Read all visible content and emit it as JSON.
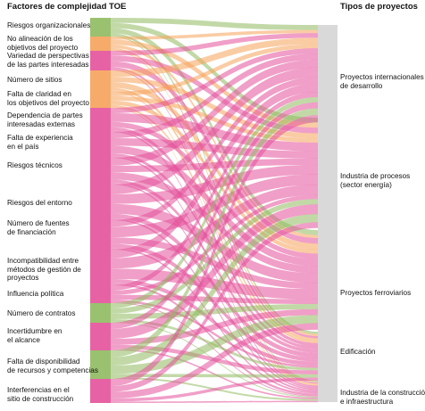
{
  "header_left": "Factores de complejidad TOE",
  "header_right": "Tipos de proyectos",
  "colors": {
    "green": "#8fba5f",
    "orange": "#f5a25a",
    "pink": "#e4509b",
    "target": "#b9b9b9"
  },
  "factors": [
    {
      "lines": [
        "Riesgos organizacionales"
      ],
      "color": "green"
    },
    {
      "lines": [
        "No alineación de los",
        "objetivos del proyecto"
      ],
      "color": "orange"
    },
    {
      "lines": [
        "Variedad de perspectivas",
        "de las partes interesadas"
      ],
      "color": "pink"
    },
    {
      "lines": [
        "Número de sitios"
      ],
      "color": "orange"
    },
    {
      "lines": [
        "Falta de claridad en",
        "los objetivos del proyecto"
      ],
      "color": "orange"
    },
    {
      "lines": [
        "Dependencia de partes",
        "interesadas externas"
      ],
      "color": "pink"
    },
    {
      "lines": [
        "Falta de experiencia",
        "en el país"
      ],
      "color": "pink"
    },
    {
      "lines": [
        "Riesgos técnicos"
      ],
      "color": "pink"
    },
    {
      "lines": [
        "Riesgos del entorno"
      ],
      "color": "pink"
    },
    {
      "lines": [
        "Número de fuentes",
        "de financiación"
      ],
      "color": "pink"
    },
    {
      "lines": [
        "Incompatibilidad entre",
        "métodos de gestión de",
        "proyectos"
      ],
      "color": "pink"
    },
    {
      "lines": [
        "Influencia política"
      ],
      "color": "pink"
    },
    {
      "lines": [
        "Número de contratos"
      ],
      "color": "green"
    },
    {
      "lines": [
        "Incertidumbre en",
        "el alcance"
      ],
      "color": "pink"
    },
    {
      "lines": [
        "Falta de disponibilidad",
        "de recursos y competencias"
      ],
      "color": "green"
    },
    {
      "lines": [
        "Interferencias en el",
        "sitio de construcción"
      ],
      "color": "pink"
    }
  ],
  "project_types": [
    {
      "lines": [
        "Proyectos internacionales",
        "de desarrollo"
      ]
    },
    {
      "lines": [
        "Industria de procesos",
        "(sector energía)"
      ]
    },
    {
      "lines": [
        "Proyectos ferroviarios"
      ]
    },
    {
      "lines": [
        "Edificación"
      ]
    },
    {
      "lines": [
        "Industria de la construcción",
        "e infraestructura"
      ]
    }
  ]
}
